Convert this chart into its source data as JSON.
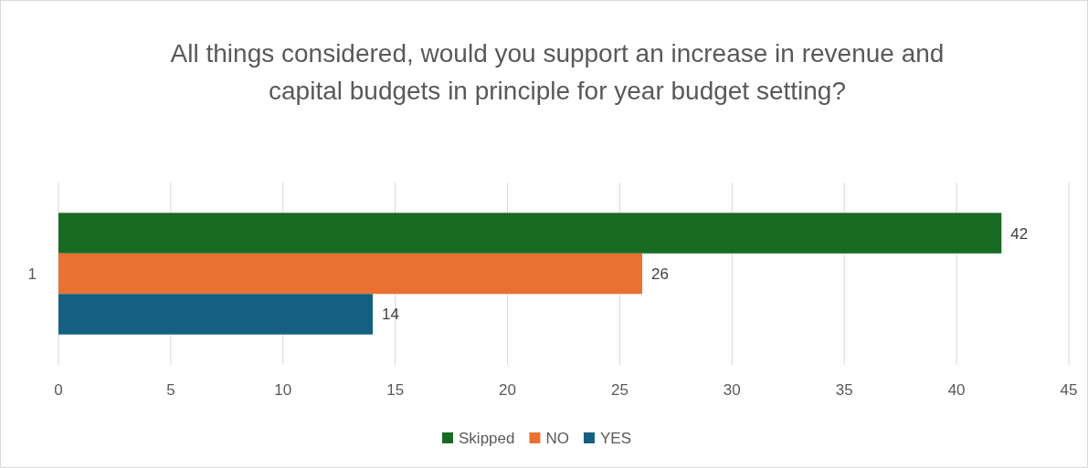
{
  "chart_data": {
    "type": "bar",
    "orientation": "horizontal",
    "title": "All things considered, would you support an increase in revenue and capital budgets in principle for year budget setting?",
    "categories": [
      "1"
    ],
    "series": [
      {
        "name": "Skipped",
        "color": "#196b24",
        "values": [
          42
        ]
      },
      {
        "name": "NO",
        "color": "#e97132",
        "values": [
          26
        ]
      },
      {
        "name": "YES",
        "color": "#156082",
        "values": [
          14
        ]
      }
    ],
    "xlim": [
      0,
      45
    ],
    "xticks": [
      0,
      5,
      10,
      15,
      20,
      25,
      30,
      35,
      40,
      45
    ],
    "grid": "x",
    "data_labels": true,
    "legend": "bottom"
  }
}
